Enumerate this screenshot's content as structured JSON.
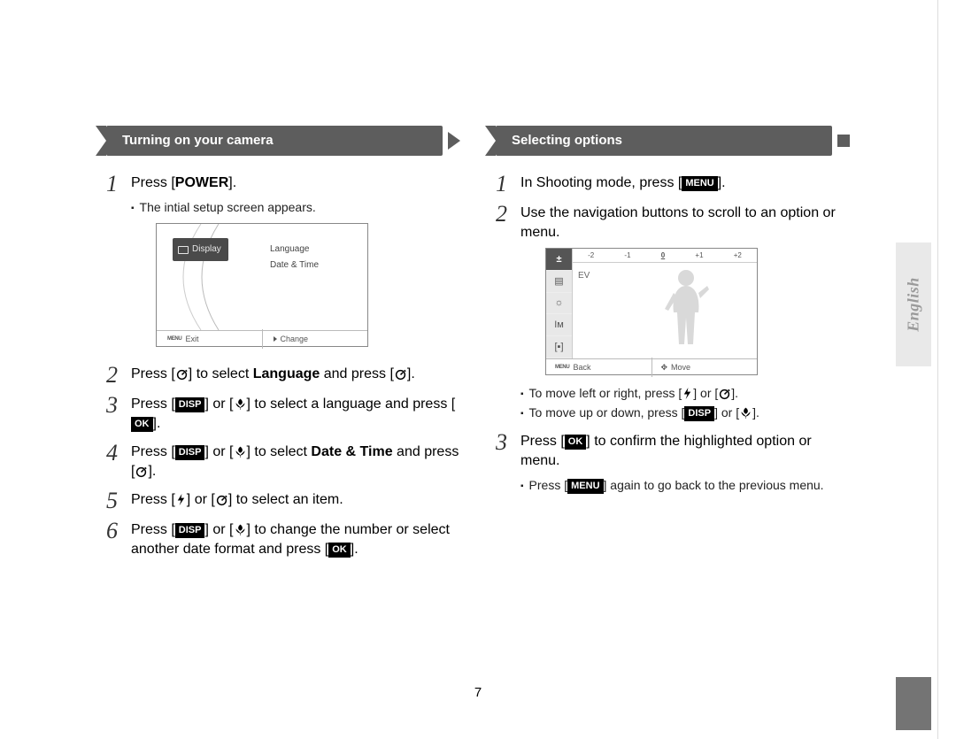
{
  "page_number": "7",
  "side_tab_label": "English",
  "left": {
    "heading": "Turning on your camera",
    "steps": [
      {
        "num": "1",
        "text_parts": [
          "Press [",
          {
            "b": "POWER"
          },
          "]."
        ],
        "sub": [
          "The intial setup screen appears."
        ]
      },
      {
        "num": "2",
        "text_parts": [
          "Press [",
          {
            "icon": "timer"
          },
          "] to select ",
          {
            "b": "Language"
          },
          " and press [",
          {
            "icon": "timer"
          },
          "]."
        ]
      },
      {
        "num": "3",
        "text_parts": [
          "Press [",
          {
            "kbd": "DISP"
          },
          "] or [",
          {
            "icon": "macro"
          },
          "] to select a language and press [",
          {
            "kbd": "OK"
          },
          "]."
        ]
      },
      {
        "num": "4",
        "text_parts": [
          "Press [",
          {
            "kbd": "DISP"
          },
          "] or [",
          {
            "icon": "macro"
          },
          "] to select ",
          {
            "b": "Date & Time"
          },
          " and press [",
          {
            "icon": "timer"
          },
          "]."
        ]
      },
      {
        "num": "5",
        "text_parts": [
          "Press [",
          {
            "icon": "flash"
          },
          "] or [",
          {
            "icon": "timer"
          },
          "] to select an item."
        ]
      },
      {
        "num": "6",
        "text_parts": [
          "Press [",
          {
            "kbd": "DISP"
          },
          "] or [",
          {
            "icon": "macro"
          },
          "] to change the number or select another date format and press [",
          {
            "kbd": "OK"
          },
          "]."
        ]
      }
    ],
    "screen": {
      "display_label": "Display",
      "option1": "Language",
      "option2": "Date & Time",
      "footer_left": "Exit",
      "footer_right": "Change"
    }
  },
  "right": {
    "heading": "Selecting options",
    "steps": [
      {
        "num": "1",
        "text_parts": [
          "In Shooting mode, press [",
          {
            "kbd": "MENU"
          },
          "]."
        ]
      },
      {
        "num": "2",
        "text_parts": [
          "Use the navigation buttons to scroll to an option or menu."
        ]
      },
      {
        "num": "3",
        "text_parts": [
          "Press [",
          {
            "kbd": "OK"
          },
          "] to confirm the highlighted option or menu."
        ],
        "sub_parts": [
          [
            "Press [",
            {
              "kbd": "MENU"
            },
            "] again to go back to the previous menu."
          ]
        ]
      }
    ],
    "post_screen_sub": [
      [
        "To move left or right, press [",
        {
          "icon": "flash"
        },
        "] or [",
        {
          "icon": "timer"
        },
        "]."
      ],
      [
        "To move up or down, press [",
        {
          "kbd": "DISP"
        },
        "] or [",
        {
          "icon": "macro"
        },
        "]."
      ]
    ],
    "screen": {
      "ev_values": [
        "-2",
        "-1",
        "0",
        "+1",
        "+2"
      ],
      "ev_selected_index": 2,
      "ev_label": "EV",
      "footer_left": "Back",
      "footer_right": "Move"
    }
  },
  "colors": {
    "ribbon": "#5d5d5d",
    "side_tab_bg": "#e9e9e9",
    "side_tab_text": "#9a9a9a",
    "page_bar": "#747474"
  }
}
